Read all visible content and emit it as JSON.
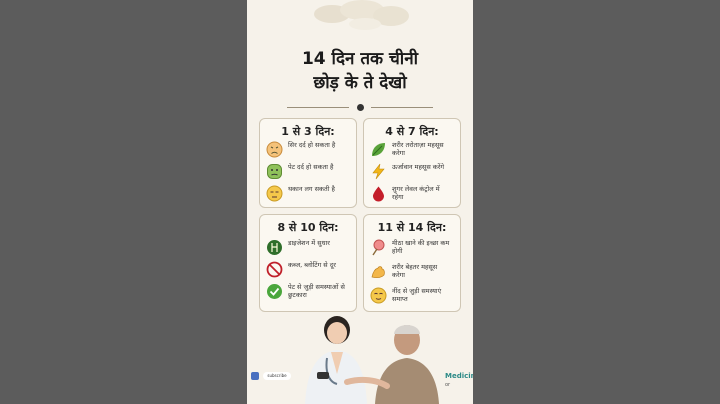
{
  "title": {
    "line1": "14 दिन तक चीनी",
    "line2": "छोड़ के ते देखो"
  },
  "cards": [
    {
      "heading": "1 से 3 दिन:",
      "items": [
        {
          "icon": "sad-face-icon",
          "text": "सिर दर्द हो सकता है"
        },
        {
          "icon": "nauseous-face-icon",
          "text": "पेट दर्द हो सकता है"
        },
        {
          "icon": "tired-face-icon",
          "text": "थकान लग सकती है"
        }
      ]
    },
    {
      "heading": "4 से 7 दिन:",
      "items": [
        {
          "icon": "leaf-icon",
          "text": "शरीर तरोताज़ा महसूस करेगा"
        },
        {
          "icon": "lightning-icon",
          "text": "ऊर्जावान महसूस करेंगे"
        },
        {
          "icon": "blood-drop-icon",
          "text": "शुगर लेवल कंट्रोल में रहेगा"
        }
      ]
    },
    {
      "heading": "8 से 10 दिन:",
      "items": [
        {
          "icon": "stomach-icon",
          "text": "डाइजेशन में सुधार"
        },
        {
          "icon": "no-sign-icon",
          "text": "कब्ज, ब्लोटिंग से दूर"
        },
        {
          "icon": "check-circle-icon",
          "text": "पेट से जुड़ी समस्याओं से छुटकारा"
        }
      ]
    },
    {
      "heading": "11 से 14 दिन:",
      "items": [
        {
          "icon": "lollipop-icon",
          "text": "मीठा खाने की इच्छा कम होगी"
        },
        {
          "icon": "muscle-arm-icon",
          "text": "शरीर बेहतर महसूस करेगा"
        },
        {
          "icon": "relieved-face-icon",
          "text": "नींद से जुड़ी समस्याएं समाप्त"
        }
      ]
    }
  ],
  "footer": {
    "subscribe_label": "subscribe",
    "logo_text": "Medicine",
    "logo_sub": "or"
  },
  "colors": {
    "background": "#f6f2ea",
    "card_border": "#cfc6b4",
    "logo": "#2c8a87"
  }
}
